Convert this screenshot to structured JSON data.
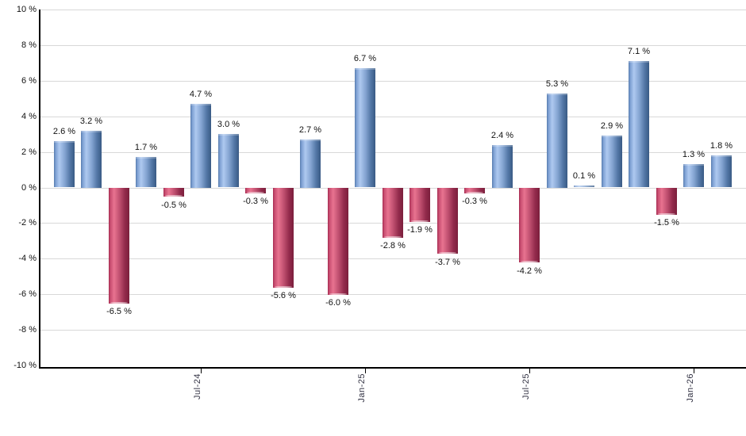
{
  "chart_data": {
    "type": "bar",
    "title": "",
    "xlabel": "",
    "ylabel": "",
    "grid": "horizontal",
    "legend": "none",
    "ylim": [
      -10,
      10
    ],
    "y_ticks": [
      {
        "value": 10,
        "label": "10 %"
      },
      {
        "value": 8,
        "label": "8 %"
      },
      {
        "value": 6,
        "label": "6 %"
      },
      {
        "value": 4,
        "label": "4 %"
      },
      {
        "value": 2,
        "label": "2 %"
      },
      {
        "value": 0,
        "label": "0 %"
      },
      {
        "value": -2,
        "label": "-2 %"
      },
      {
        "value": -4,
        "label": "-4 %"
      },
      {
        "value": -6,
        "label": "-6 %"
      },
      {
        "value": -8,
        "label": "-8 %"
      },
      {
        "value": -10,
        "label": "-10 %"
      }
    ],
    "values": [
      2.6,
      3.2,
      -6.5,
      1.7,
      -0.5,
      4.7,
      3.0,
      -0.3,
      -5.6,
      2.7,
      -6.0,
      6.7,
      -2.8,
      -1.9,
      -3.7,
      -0.3,
      2.4,
      -4.2,
      5.3,
      0.1,
      2.9,
      7.1,
      -1.5,
      1.3,
      1.8
    ],
    "bar_labels": [
      "2.6 %",
      "3.2 %",
      "-6.5 %",
      "1.7 %",
      "-0.5 %",
      "4.7 %",
      "3.0 %",
      "-0.3 %",
      "-5.6 %",
      "2.7 %",
      "-6.0 %",
      "6.7 %",
      "-2.8 %",
      "-1.9 %",
      "-3.7 %",
      "-0.3 %",
      "2.4 %",
      "-4.2 %",
      "5.3 %",
      "0.1 %",
      "2.9 %",
      "7.1 %",
      "-1.5 %",
      "1.3 %",
      "1.8 %"
    ],
    "x_ticks": [
      {
        "index": 5,
        "label": "Jul-24"
      },
      {
        "index": 11,
        "label": "Jan-25"
      },
      {
        "index": 17,
        "label": "Jul-25"
      },
      {
        "index": 23,
        "label": "Jan-26"
      }
    ],
    "colors": {
      "positive_bar": "#7C9DD0",
      "positive_gradient": [
        "#577BAD",
        "#7D9FD2",
        "#AEC9F0",
        "#85A5D2",
        "#5377A6",
        "#395A84"
      ],
      "negative_bar": "#C34868",
      "negative_gradient": [
        "#A62B50",
        "#C84E71",
        "#E87390",
        "#C05070",
        "#932B4C",
        "#7B1F3C"
      ],
      "gridline": "#D8D8D8",
      "axis": "#000000",
      "label_text": "#111111"
    }
  }
}
